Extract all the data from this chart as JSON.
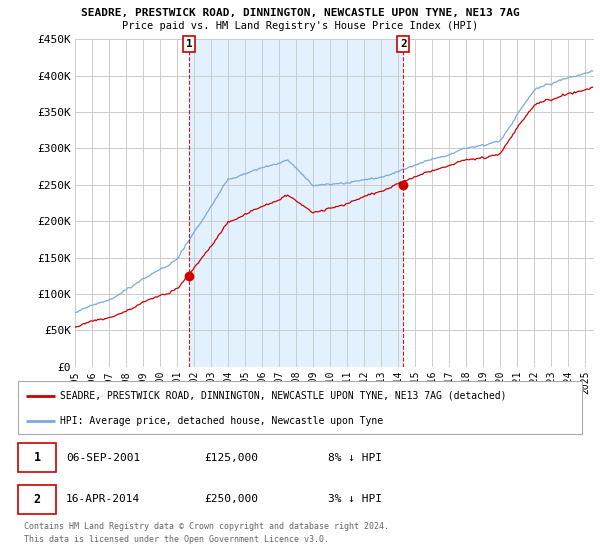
{
  "title1": "SEADRE, PRESTWICK ROAD, DINNINGTON, NEWCASTLE UPON TYNE, NE13 7AG",
  "title2": "Price paid vs. HM Land Registry's House Price Index (HPI)",
  "ylim": [
    0,
    450000
  ],
  "yticks": [
    0,
    50000,
    100000,
    150000,
    200000,
    250000,
    300000,
    350000,
    400000,
    450000
  ],
  "ytick_labels": [
    "£0",
    "£50K",
    "£100K",
    "£150K",
    "£200K",
    "£250K",
    "£300K",
    "£350K",
    "£400K",
    "£450K"
  ],
  "sale1_year": 2001,
  "sale1_month": 9,
  "sale1_date": "06-SEP-2001",
  "sale1_price": 125000,
  "sale1_hpi_diff": "8% ↓ HPI",
  "sale2_year": 2014,
  "sale2_month": 4,
  "sale2_date": "16-APR-2014",
  "sale2_price": 250000,
  "sale2_hpi_diff": "3% ↓ HPI",
  "red_color": "#cc0000",
  "blue_color": "#7aaadd",
  "shade_color": "#ddeeff",
  "background_color": "#ffffff",
  "grid_color": "#cccccc",
  "legend_label_red": "SEADRE, PRESTWICK ROAD, DINNINGTON, NEWCASTLE UPON TYNE, NE13 7AG (detached)",
  "legend_label_blue": "HPI: Average price, detached house, Newcastle upon Tyne",
  "footer1": "Contains HM Land Registry data © Crown copyright and database right 2024.",
  "footer2": "This data is licensed under the Open Government Licence v3.0.",
  "xmin": 1995,
  "xmax": 2025.5
}
